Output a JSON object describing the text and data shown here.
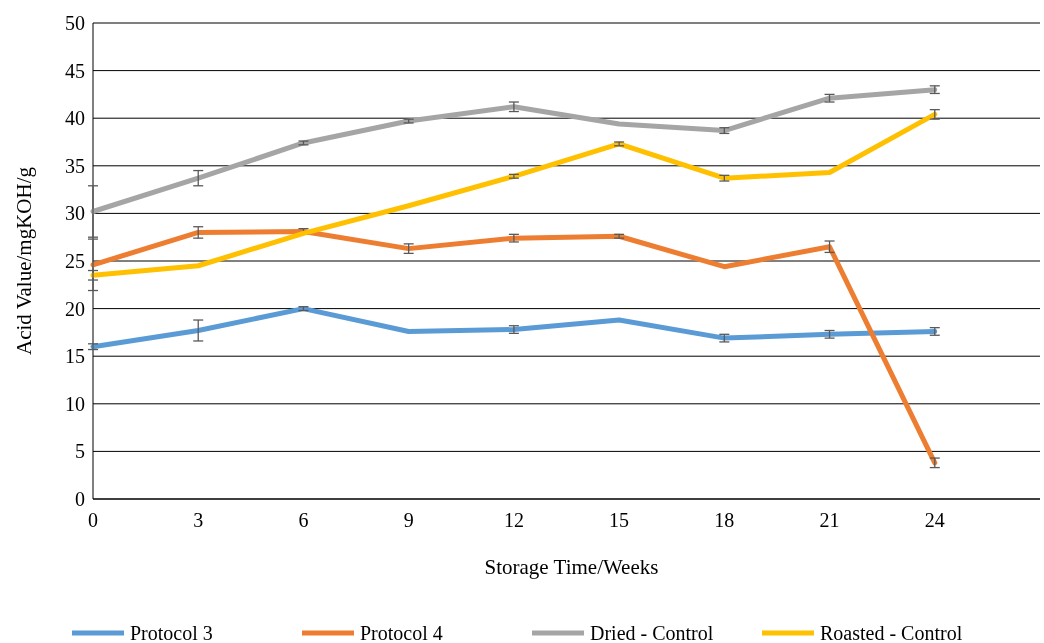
{
  "chart_data": {
    "type": "line",
    "xlabel": "Storage Time/Weeks",
    "ylabel": "Acid Value/mgKOH/g",
    "x": [
      0,
      3,
      6,
      9,
      12,
      15,
      18,
      21,
      24
    ],
    "xlim": [
      0,
      27
    ],
    "xticks": [
      0,
      3,
      6,
      9,
      12,
      15,
      18,
      21,
      24
    ],
    "ylim": [
      0,
      50
    ],
    "yticks": [
      0,
      5,
      10,
      15,
      20,
      25,
      30,
      35,
      40,
      45,
      50
    ],
    "grid": "y",
    "legend": "bottom",
    "marker": "none",
    "line_style": "solid",
    "series": [
      {
        "name": "Protocol 3",
        "color": "#5b9bd5",
        "values": [
          16.0,
          17.7,
          20.0,
          17.6,
          17.8,
          18.8,
          16.9,
          17.3,
          17.6
        ],
        "errors": [
          0.3,
          1.1,
          0.2,
          null,
          0.4,
          null,
          0.4,
          0.4,
          0.4
        ]
      },
      {
        "name": "Protocol 4",
        "color": "#ed7d31",
        "values": [
          24.6,
          28.0,
          28.1,
          26.3,
          27.4,
          27.6,
          24.4,
          26.5,
          3.8
        ],
        "errors": [
          2.7,
          0.6,
          0.3,
          0.5,
          0.4,
          0.2,
          null,
          0.6,
          0.5
        ]
      },
      {
        "name": "Dried - Control",
        "color": "#a5a5a5",
        "values": [
          30.2,
          33.7,
          37.4,
          39.7,
          41.2,
          39.4,
          38.7,
          42.1,
          43.0
        ],
        "errors": [
          2.7,
          0.8,
          0.2,
          0.2,
          0.5,
          null,
          0.3,
          0.4,
          0.4
        ]
      },
      {
        "name": "Roasted - Control",
        "color": "#ffc000",
        "values": [
          23.5,
          24.5,
          27.9,
          30.8,
          33.9,
          37.3,
          33.7,
          34.3,
          40.4
        ],
        "errors": [
          0.5,
          null,
          null,
          null,
          0.2,
          0.2,
          0.3,
          null,
          0.5
        ]
      }
    ]
  }
}
